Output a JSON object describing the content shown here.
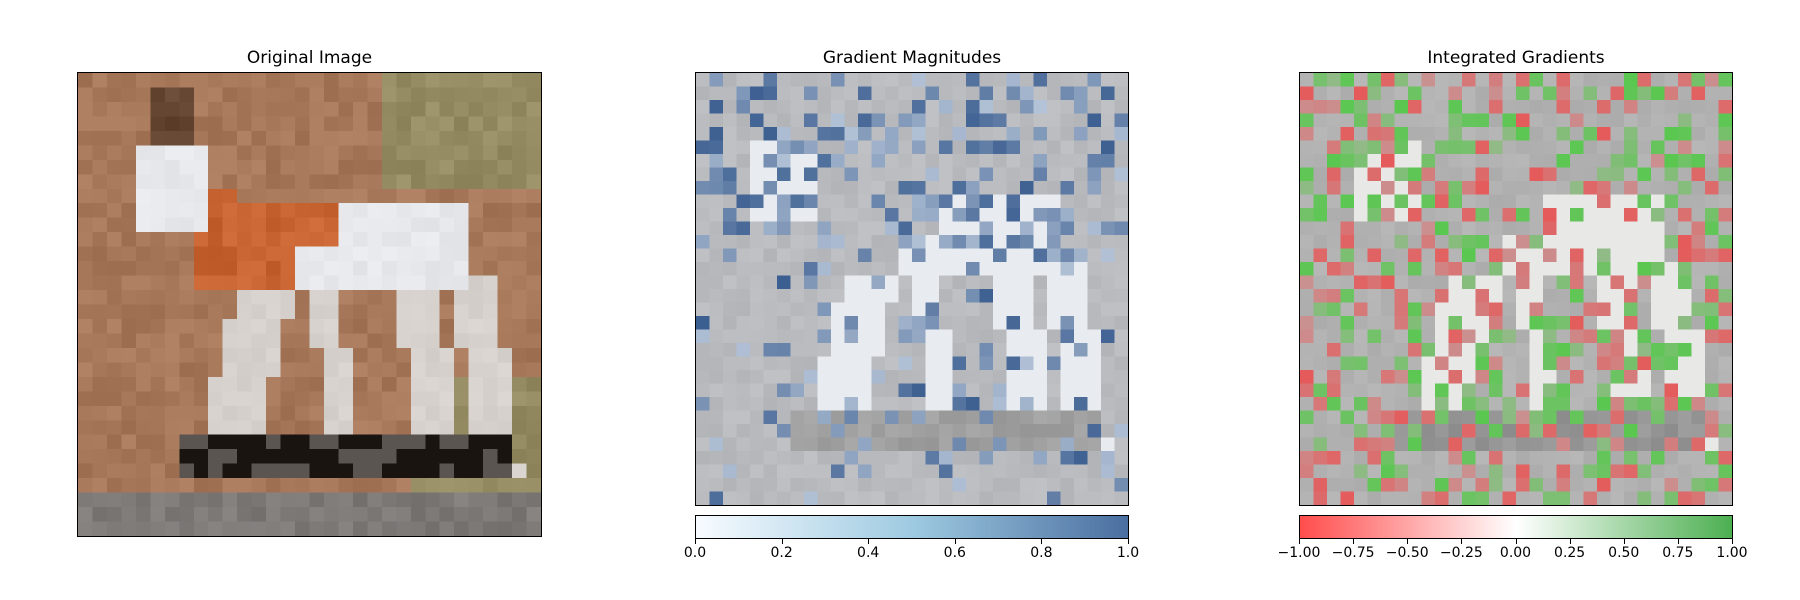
{
  "chart_data": [
    {
      "type": "heatmap",
      "title": "Original Image",
      "grid": false,
      "colorbar": false
    },
    {
      "type": "heatmap",
      "title": "Gradient Magnitudes",
      "grid": false,
      "colorbar": {
        "orientation": "horizontal",
        "placement": "bottom",
        "range": [
          0.0,
          1.0
        ],
        "ticks": [
          "0.0",
          "0.2",
          "0.4",
          "0.6",
          "0.8",
          "1.0"
        ],
        "colors": [
          "#f7fbff",
          "#9ecae1",
          "#4a6fa0"
        ]
      }
    },
    {
      "type": "heatmap",
      "title": "Integrated Gradients",
      "grid": false,
      "colorbar": {
        "orientation": "horizontal",
        "placement": "bottom",
        "range": [
          -1.0,
          1.0
        ],
        "ticks": [
          "−1.00",
          "−0.75",
          "−0.50",
          "−0.25",
          "0.00",
          "0.25",
          "0.50",
          "0.75",
          "1.00"
        ],
        "colors": [
          "#ff4d4d",
          "#ffffff",
          "#4caf50"
        ]
      }
    }
  ]
}
